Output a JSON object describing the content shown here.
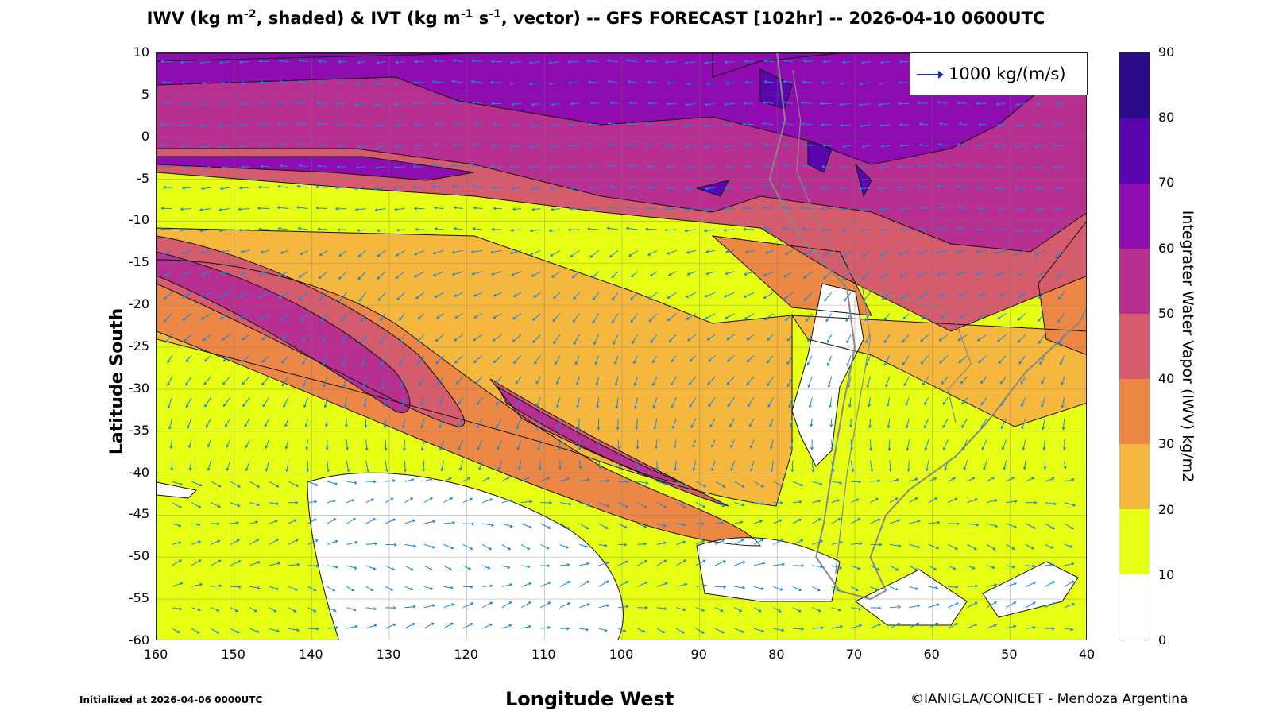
{
  "figure": {
    "title_iwv": "IWV (kg m",
    "title_iwv_exp": "-2",
    "title_mid": ", shaded) & IVT (kg m",
    "title_ivt_exp1": "-1",
    "title_s": " s",
    "title_ivt_exp2": "-1",
    "title_end": ", vector) -- GFS FORECAST [102hr] -- 2026-04-10 0600UTC",
    "xlabel": "Longitude West",
    "ylabel": "Latitude South",
    "init_text": "Initialized at 2026-04-06 0000UTC",
    "credit_text": "©IANIGLA/CONICET - Mendoza Argentina",
    "legend_vector_label": "1000 kg/(m/s)",
    "legend_vector_color": "#1030d0",
    "vector_color": "#1e88d8",
    "contour_color": "#111111",
    "land_outline_color": "#888888"
  },
  "chart_data": {
    "type": "heatmap",
    "x_ticks": [
      "160",
      "150",
      "140",
      "130",
      "120",
      "110",
      "100",
      "90",
      "80",
      "70",
      "60",
      "50",
      "40"
    ],
    "y_ticks": [
      "10",
      "5",
      "0",
      "-5",
      "-10",
      "-15",
      "-20",
      "-25",
      "-30",
      "-35",
      "-40",
      "-45",
      "-50",
      "-55",
      "-60"
    ],
    "xlim": [
      160,
      40
    ],
    "ylim": [
      -60,
      10
    ],
    "grid": true,
    "colorbar": {
      "label": "Integrater Water Vapor (IWV) kg/m2",
      "ticks": [
        "90",
        "80",
        "70",
        "60",
        "50",
        "40",
        "30",
        "20",
        "10",
        "0"
      ],
      "bins": [
        {
          "range": [
            80,
            90
          ],
          "color": "#2a0a86"
        },
        {
          "range": [
            70,
            80
          ],
          "color": "#5a06b0"
        },
        {
          "range": [
            60,
            70
          ],
          "color": "#8e0cb0"
        },
        {
          "range": [
            50,
            60
          ],
          "color": "#b82f92"
        },
        {
          "range": [
            40,
            50
          ],
          "color": "#d45c6c"
        },
        {
          "range": [
            30,
            40
          ],
          "color": "#ec8746"
        },
        {
          "range": [
            20,
            30
          ],
          "color": "#f6b73e"
        },
        {
          "range": [
            10,
            20
          ],
          "color": "#e6ff12"
        },
        {
          "range": [
            0,
            10
          ],
          "color": "#ffffff"
        }
      ]
    }
  }
}
